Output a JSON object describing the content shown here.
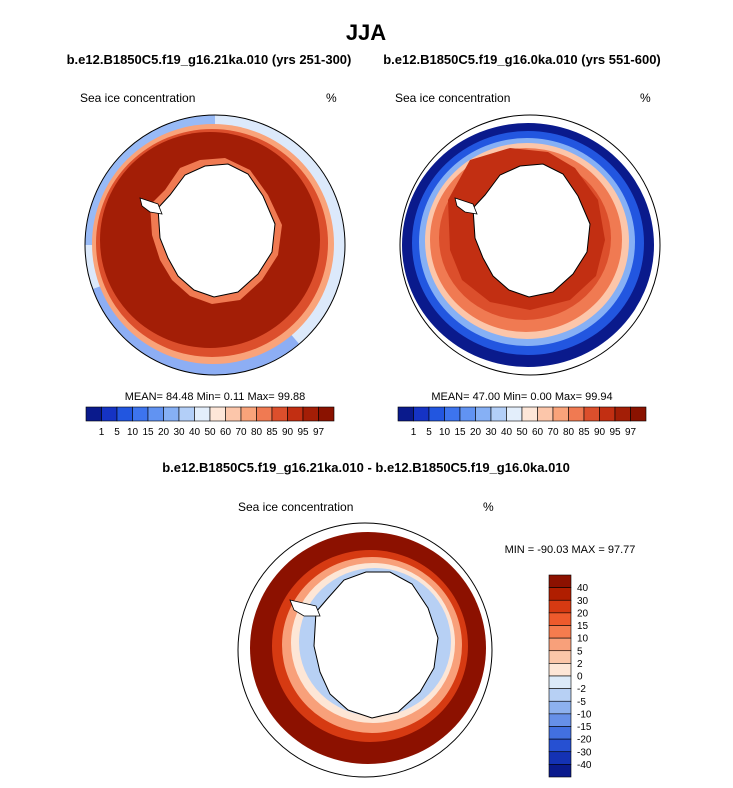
{
  "page_title": "JJA",
  "chart_data": [
    {
      "type": "heatmap",
      "title": "b.e12.B1850C5.f19_g16.21ka.010 (yrs 251-300)",
      "field_label": "Sea ice concentration",
      "units": "%",
      "stats": {
        "mean": "84.48",
        "min": "0.11",
        "max": "99.88"
      },
      "stats_text": "MEAN= 84.48  Min=   0.11  Max= 99.88",
      "colorbar": {
        "levels": [
          "1",
          "5",
          "10",
          "15",
          "20",
          "30",
          "40",
          "50",
          "60",
          "70",
          "80",
          "85",
          "90",
          "95",
          "97"
        ],
        "colors": [
          "#0a1a8c",
          "#1533c4",
          "#2256e0",
          "#3d74ee",
          "#6193f2",
          "#86b0f5",
          "#b3cff8",
          "#e3eefb",
          "#fde6d8",
          "#fcc6aa",
          "#f9a37a",
          "#f07a52",
          "#dc4f2c",
          "#c22f12",
          "#a31e06",
          "#8a1200"
        ]
      }
    },
    {
      "type": "heatmap",
      "title": "b.e12.B1850C5.f19_g16.0ka.010 (yrs 551-600)",
      "field_label": "Sea ice concentration",
      "units": "%",
      "stats": {
        "mean": "47.00",
        "min": "0.00",
        "max": "99.94"
      },
      "stats_text": "MEAN= 47.00  Min=   0.00  Max= 99.94",
      "colorbar": {
        "levels": [
          "1",
          "5",
          "10",
          "15",
          "20",
          "30",
          "40",
          "50",
          "60",
          "70",
          "80",
          "85",
          "90",
          "95",
          "97"
        ],
        "colors": [
          "#0a1a8c",
          "#1533c4",
          "#2256e0",
          "#3d74ee",
          "#6193f2",
          "#86b0f5",
          "#b3cff8",
          "#e3eefb",
          "#fde6d8",
          "#fcc6aa",
          "#f9a37a",
          "#f07a52",
          "#dc4f2c",
          "#c22f12",
          "#a31e06",
          "#8a1200"
        ]
      }
    },
    {
      "type": "heatmap",
      "title": "b.e12.B1850C5.f19_g16.21ka.010 - b.e12.B1850C5.f19_g16.0ka.010",
      "field_label": "Sea ice concentration",
      "units": "%",
      "stats": {
        "min": "-90.03",
        "max": "97.77"
      },
      "stats_text": "MIN = -90.03 MAX = 97.77",
      "colorbar": {
        "levels": [
          "40",
          "30",
          "20",
          "15",
          "10",
          "5",
          "2",
          "0",
          "-2",
          "-5",
          "-10",
          "-15",
          "-20",
          "-30",
          "-40"
        ],
        "colors": [
          "#8c1100",
          "#b01e00",
          "#d63a12",
          "#ee5a2c",
          "#f57c4e",
          "#f8a07a",
          "#fbc6a8",
          "#fde6d6",
          "#dceaf8",
          "#b7d0f4",
          "#8db1ee",
          "#6690e8",
          "#4270e0",
          "#2650d2",
          "#1432b4",
          "#0a1a8c"
        ]
      }
    }
  ]
}
